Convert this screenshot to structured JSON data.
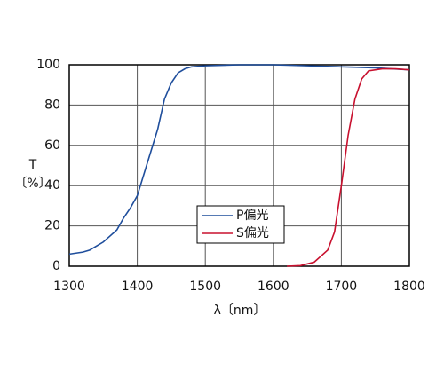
{
  "chart_data": {
    "type": "line",
    "xlabel": "λ〔nm〕",
    "ylabel": "T",
    "ylabel_unit": "〔%〕",
    "xlim": [
      1300,
      1800
    ],
    "xticks": [
      1300,
      1400,
      1500,
      1600,
      1700,
      1800
    ],
    "ylim": [
      0,
      100
    ],
    "yticks": [
      0,
      20,
      40,
      60,
      80,
      100
    ],
    "grid": true,
    "series": [
      {
        "name": "P偏光",
        "color": "#1f4e9c",
        "x": [
          1300,
          1310,
          1320,
          1330,
          1340,
          1350,
          1360,
          1370,
          1380,
          1390,
          1400,
          1410,
          1420,
          1430,
          1440,
          1450,
          1460,
          1470,
          1480,
          1500,
          1550,
          1600,
          1650,
          1700,
          1750,
          1800
        ],
        "values": [
          6,
          6.5,
          7,
          8,
          10,
          12,
          15,
          18,
          24,
          29,
          35,
          46,
          57,
          68,
          83,
          91,
          96,
          98,
          99,
          99.5,
          100,
          100,
          99.5,
          99,
          98.5,
          97.5
        ]
      },
      {
        "name": "S偏光",
        "color": "#c8102e",
        "x": [
          1620,
          1640,
          1660,
          1680,
          1690,
          1700,
          1710,
          1720,
          1730,
          1740,
          1760,
          1780,
          1800
        ],
        "values": [
          0,
          0.3,
          2,
          8,
          17,
          40,
          65,
          83,
          93,
          97,
          98,
          98,
          97.5
        ]
      }
    ]
  }
}
